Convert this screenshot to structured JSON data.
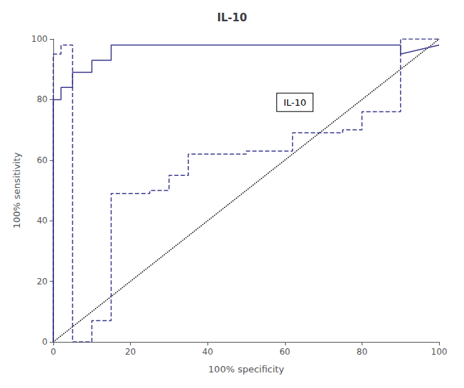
{
  "chart_data": {
    "type": "line",
    "title": "IL-10",
    "xlabel": "100% specificity",
    "ylabel": "100% sensitivity",
    "xlim": [
      0,
      100
    ],
    "ylim": [
      0,
      100
    ],
    "xticks": [
      0,
      20,
      40,
      60,
      80,
      100
    ],
    "yticks": [
      0,
      20,
      40,
      60,
      80,
      100
    ],
    "grid": false,
    "series": [
      {
        "x": [
          0,
          100
        ],
        "values": [
          0,
          100
        ],
        "color": "#000000",
        "line_style": "dotted"
      },
      {
        "x": [
          0,
          0,
          0,
          2,
          2,
          5,
          5,
          10,
          10,
          15,
          15,
          90,
          90,
          100
        ],
        "values": [
          0,
          30,
          80,
          80,
          84,
          84,
          89,
          89,
          93,
          93,
          98,
          98,
          95,
          98
        ],
        "color": "#3b3b8e",
        "line_style": "solid"
      },
      {
        "x": [
          0,
          0,
          2,
          2,
          5,
          5,
          10,
          10,
          15,
          15,
          25,
          25,
          30,
          30,
          35,
          35,
          50,
          50,
          62,
          62,
          75,
          75,
          80,
          80,
          90,
          90,
          100
        ],
        "values": [
          0,
          95,
          95,
          98,
          98,
          0,
          0,
          7,
          7,
          49,
          49,
          50,
          50,
          55,
          55,
          62,
          62,
          63,
          63,
          69,
          69,
          70,
          70,
          76,
          76,
          100,
          100
        ],
        "color": "#3b3b8e",
        "line_style": "dashed"
      }
    ],
    "annotations": [
      {
        "text": "IL-10"
      }
    ]
  }
}
